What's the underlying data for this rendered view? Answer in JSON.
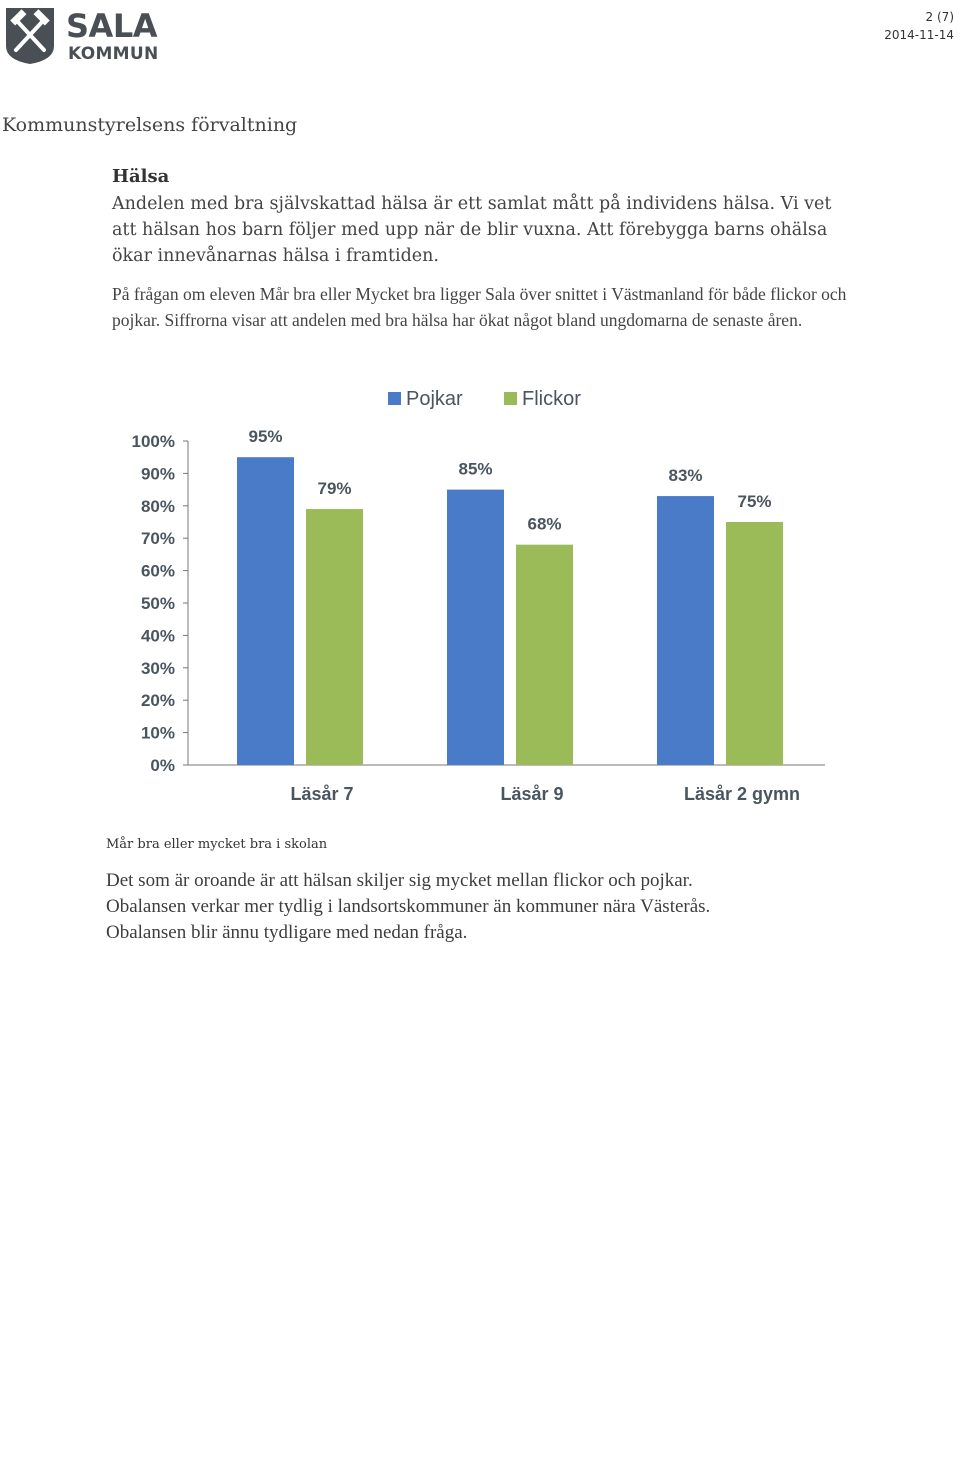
{
  "header": {
    "logo_name": "SALA",
    "logo_sub": "KOMMUN",
    "page": "2 (7)",
    "date": "2014-11-14"
  },
  "department": "Kommunstyrelsens förvaltning",
  "section": {
    "heading": "Hälsa",
    "para1": "Andelen med bra självskattad hälsa är ett samlat mått på individens hälsa. Vi vet att hälsan hos barn följer med upp när de blir vuxna. Att förebygga barns ohälsa ökar innevånarnas hälsa i framtiden.",
    "para2": "På frågan om eleven Mår bra eller Mycket bra ligger Sala över snittet i Västmanland för både flickor och pojkar. Siffrorna visar att andelen med bra hälsa har ökat något bland ungdomarna de senaste åren."
  },
  "chart_data": {
    "type": "bar",
    "categories": [
      "Läsår 7",
      "Läsår 9",
      "Läsår 2 gymn"
    ],
    "series": [
      {
        "name": "Pojkar",
        "values": [
          95,
          85,
          83
        ],
        "labels": [
          "95%",
          "85%",
          "83%"
        ],
        "color": "#4a7bc8"
      },
      {
        "name": "Flickor",
        "values": [
          79,
          68,
          75
        ],
        "labels": [
          "79%",
          "68%",
          "75%"
        ],
        "color": "#9bbb59"
      }
    ],
    "ylim": [
      0,
      100
    ],
    "yticks": [
      "0%",
      "10%",
      "20%",
      "30%",
      "40%",
      "50%",
      "60%",
      "70%",
      "80%",
      "90%",
      "100%"
    ],
    "legend": "top",
    "grid": false
  },
  "caption": "Mår bra eller mycket bra i skolan",
  "closing": [
    "Det som är oroande är att hälsan skiljer sig mycket mellan flickor och pojkar.",
    "Obalansen verkar mer tydlig i landsortskommuner än kommuner nära Västerås.",
    "Obalansen blir ännu tydligare med nedan fråga."
  ]
}
